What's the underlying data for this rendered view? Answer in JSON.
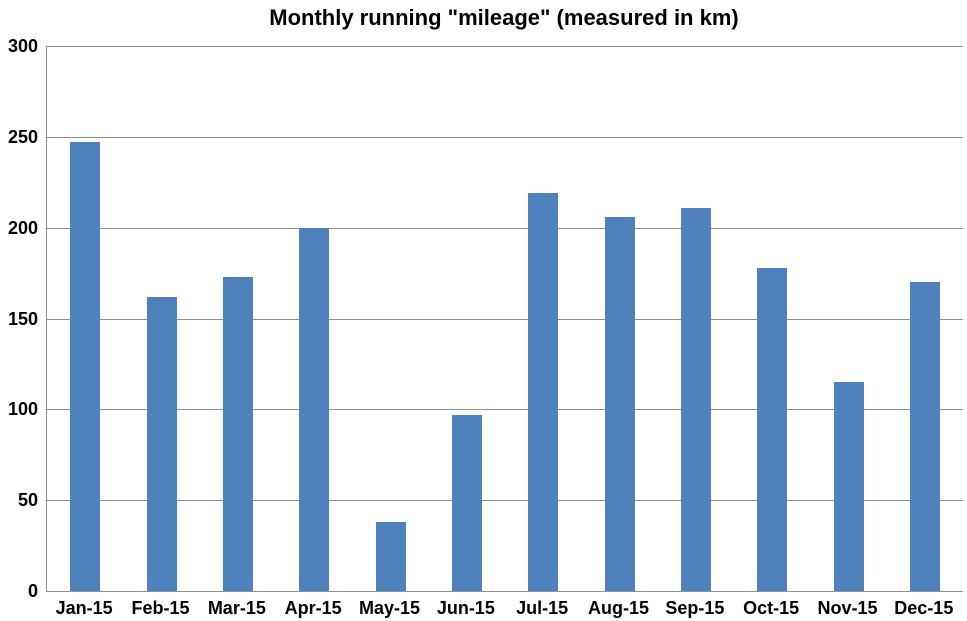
{
  "chart_data": {
    "type": "bar",
    "title": "Monthly running \"mileage\" (measured in km)",
    "categories": [
      "Jan-15",
      "Feb-15",
      "Mar-15",
      "Apr-15",
      "May-15",
      "Jun-15",
      "Jul-15",
      "Aug-15",
      "Sep-15",
      "Oct-15",
      "Nov-15",
      "Dec-15"
    ],
    "values": [
      247,
      162,
      173,
      200,
      38,
      97,
      219,
      206,
      211,
      178,
      115,
      170
    ],
    "xlabel": "",
    "ylabel": "",
    "ylim": [
      0,
      300
    ],
    "y_tick_step": 50,
    "y_ticks": [
      0,
      50,
      100,
      150,
      200,
      250,
      300
    ],
    "grid": true,
    "legend_position": "none",
    "colors": {
      "bar": "#4F81BD",
      "gridline": "#909090",
      "axis": "#909090",
      "text": "#000000",
      "background": "#FFFFFF"
    }
  }
}
